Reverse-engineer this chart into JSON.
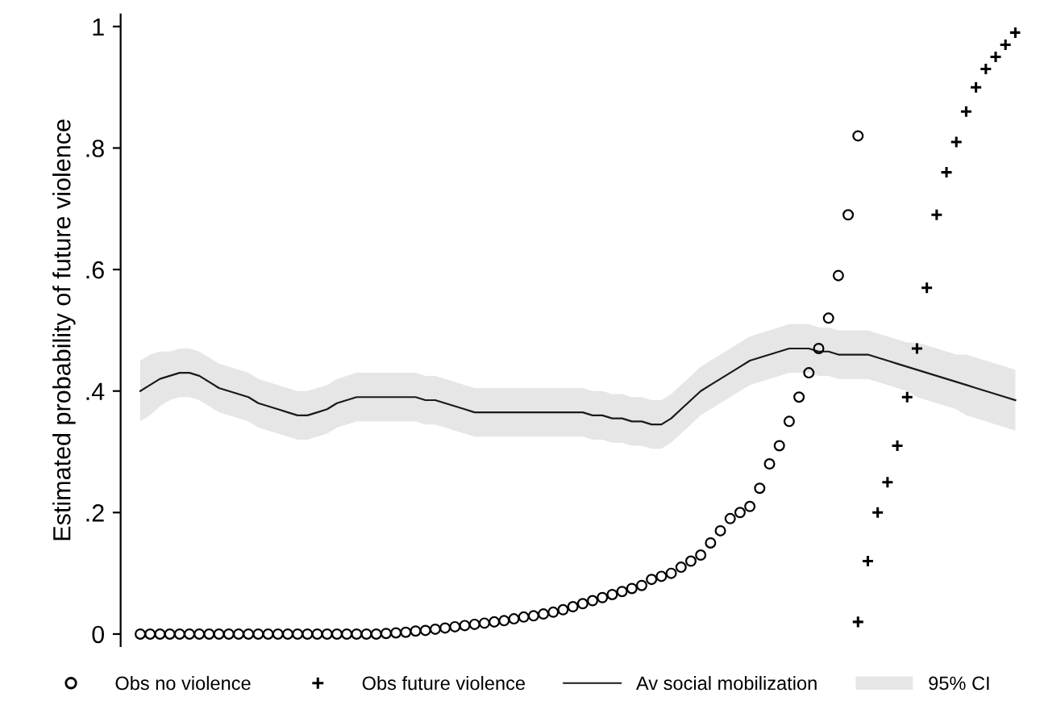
{
  "chart_data": {
    "type": "scatter",
    "ylabel": "Estimated probability of future violence",
    "categories": [
      null,
      null,
      null,
      null,
      null,
      null,
      null,
      null,
      null,
      null,
      null,
      null,
      null,
      null,
      null,
      null,
      null,
      null,
      null,
      null,
      null,
      null,
      null,
      null,
      null,
      null,
      null,
      null,
      null,
      null,
      null,
      null,
      null,
      null,
      null,
      null,
      null,
      null,
      null,
      null,
      null,
      null,
      null,
      null,
      null,
      null,
      null,
      null,
      null,
      null,
      null,
      null,
      null,
      null,
      null,
      null,
      null,
      null,
      null,
      null,
      null,
      null,
      null,
      null,
      null,
      null,
      null,
      null,
      null,
      null,
      null,
      null,
      null,
      null,
      null,
      null,
      null,
      null,
      null,
      null,
      null,
      null,
      null,
      null,
      null,
      null,
      null,
      null,
      null,
      null
    ],
    "ylim": [
      -0.02,
      1.02
    ],
    "yticks": [
      0,
      {
        "value": 0.2,
        "label": ".2"
      },
      {
        "value": 0.4,
        "label": ".4"
      },
      {
        "value": 0.6,
        "label": ".6"
      },
      {
        "value": 0.8,
        "label": ".8"
      },
      1
    ],
    "grid": false,
    "legend": "bottom",
    "tick_labels": "y",
    "annotations": [
      "95% CI"
    ],
    "series": [
      {
        "type": "line",
        "name": "Av social mobilization",
        "color": "#1a1a1a",
        "marker": "none",
        "line_style": "solid",
        "lower": [
          0.35,
          0.36,
          0.375,
          0.385,
          0.39,
          0.39,
          0.385,
          0.375,
          0.365,
          0.36,
          0.355,
          0.35,
          0.34,
          0.335,
          0.33,
          0.325,
          0.32,
          0.32,
          0.325,
          0.33,
          0.34,
          0.345,
          0.35,
          0.35,
          0.35,
          0.35,
          0.35,
          0.35,
          0.35,
          0.345,
          0.345,
          0.34,
          0.335,
          0.33,
          0.325,
          0.325,
          0.325,
          0.325,
          0.325,
          0.325,
          0.325,
          0.325,
          0.325,
          0.325,
          0.325,
          0.325,
          0.32,
          0.32,
          0.315,
          0.315,
          0.31,
          0.31,
          0.305,
          0.305,
          0.315,
          0.33,
          0.345,
          0.36,
          0.37,
          0.38,
          0.39,
          0.4,
          0.41,
          0.415,
          0.42,
          0.425,
          0.43,
          0.43,
          0.43,
          0.425,
          0.425,
          0.42,
          0.42,
          0.42,
          0.42,
          0.415,
          0.41,
          0.405,
          0.4,
          0.39,
          0.385,
          0.38,
          0.375,
          0.37,
          0.36,
          0.355,
          0.35,
          0.345,
          0.34,
          0.335
        ],
        "upper": [
          0.45,
          0.46,
          0.465,
          0.465,
          0.47,
          0.47,
          0.465,
          0.455,
          0.445,
          0.44,
          0.435,
          0.43,
          0.42,
          0.415,
          0.41,
          0.405,
          0.4,
          0.4,
          0.405,
          0.41,
          0.42,
          0.425,
          0.43,
          0.43,
          0.43,
          0.43,
          0.43,
          0.43,
          0.43,
          0.425,
          0.425,
          0.42,
          0.415,
          0.41,
          0.405,
          0.405,
          0.405,
          0.405,
          0.405,
          0.405,
          0.405,
          0.405,
          0.405,
          0.405,
          0.405,
          0.405,
          0.4,
          0.4,
          0.395,
          0.395,
          0.39,
          0.39,
          0.385,
          0.385,
          0.395,
          0.41,
          0.425,
          0.44,
          0.45,
          0.46,
          0.47,
          0.48,
          0.49,
          0.495,
          0.5,
          0.505,
          0.51,
          0.51,
          0.51,
          0.505,
          0.505,
          0.5,
          0.5,
          0.5,
          0.5,
          0.495,
          0.49,
          0.485,
          0.48,
          0.48,
          0.475,
          0.47,
          0.465,
          0.46,
          0.46,
          0.455,
          0.45,
          0.445,
          0.44,
          0.435
        ],
        "values": [
          0.4,
          0.41,
          0.42,
          0.425,
          0.43,
          0.43,
          0.425,
          0.415,
          0.405,
          0.4,
          0.395,
          0.39,
          0.38,
          0.375,
          0.37,
          0.365,
          0.36,
          0.36,
          0.365,
          0.37,
          0.38,
          0.385,
          0.39,
          0.39,
          0.39,
          0.39,
          0.39,
          0.39,
          0.39,
          0.385,
          0.385,
          0.38,
          0.375,
          0.37,
          0.365,
          0.365,
          0.365,
          0.365,
          0.365,
          0.365,
          0.365,
          0.365,
          0.365,
          0.365,
          0.365,
          0.365,
          0.36,
          0.36,
          0.355,
          0.355,
          0.35,
          0.35,
          0.345,
          0.345,
          0.355,
          0.37,
          0.385,
          0.4,
          0.41,
          0.42,
          0.43,
          0.44,
          0.45,
          0.455,
          0.46,
          0.465,
          0.47,
          0.47,
          0.47,
          0.465,
          0.465,
          0.46,
          0.46,
          0.46,
          0.46,
          0.455,
          0.45,
          0.445,
          0.44,
          0.435,
          0.43,
          0.425,
          0.42,
          0.415,
          0.41,
          0.405,
          0.4,
          0.395,
          0.39,
          0.385
        ]
      },
      {
        "name": "Obs no violence",
        "color": "#000000",
        "marker": "circle",
        "values": [
          0,
          0,
          0,
          0,
          0,
          0,
          0,
          0,
          0,
          0,
          0,
          0,
          0,
          0,
          0,
          0,
          0,
          0,
          0,
          0,
          0,
          0,
          0,
          0,
          0,
          0.001,
          0.002,
          0.003,
          0.005,
          0.006,
          0.008,
          0.01,
          0.012,
          0.014,
          0.016,
          0.018,
          0.02,
          0.022,
          0.025,
          0.028,
          0.03,
          0.033,
          0.036,
          0.04,
          0.045,
          0.05,
          0.055,
          0.06,
          0.065,
          0.07,
          0.075,
          0.08,
          0.09,
          0.095,
          0.1,
          0.11,
          0.12,
          0.13,
          0.15,
          0.17,
          0.19,
          0.2,
          0.21,
          0.24,
          0.28,
          0.31,
          0.35,
          0.39,
          0.43,
          0.47,
          0.52,
          0.59,
          0.69,
          0.82,
          null,
          null,
          null,
          null,
          null,
          null,
          null,
          null,
          null,
          null,
          null,
          null,
          null,
          null,
          null,
          null
        ]
      },
      {
        "name": "Obs future violence",
        "color": "#000000",
        "marker": "cross",
        "values": [
          null,
          null,
          null,
          null,
          null,
          null,
          null,
          null,
          null,
          null,
          null,
          null,
          null,
          null,
          null,
          null,
          null,
          null,
          null,
          null,
          null,
          null,
          null,
          null,
          null,
          null,
          null,
          null,
          null,
          null,
          null,
          null,
          null,
          null,
          null,
          null,
          null,
          null,
          null,
          null,
          null,
          null,
          null,
          null,
          null,
          null,
          null,
          null,
          null,
          null,
          null,
          null,
          null,
          null,
          null,
          null,
          null,
          null,
          null,
          null,
          null,
          null,
          null,
          null,
          null,
          null,
          null,
          null,
          null,
          null,
          null,
          null,
          null,
          0.02,
          0.12,
          0.2,
          0.25,
          0.31,
          0.39,
          0.47,
          0.57,
          0.69,
          0.76,
          0.81,
          0.86,
          0.9,
          0.93,
          0.95,
          0.97,
          0.99
        ]
      }
    ]
  }
}
